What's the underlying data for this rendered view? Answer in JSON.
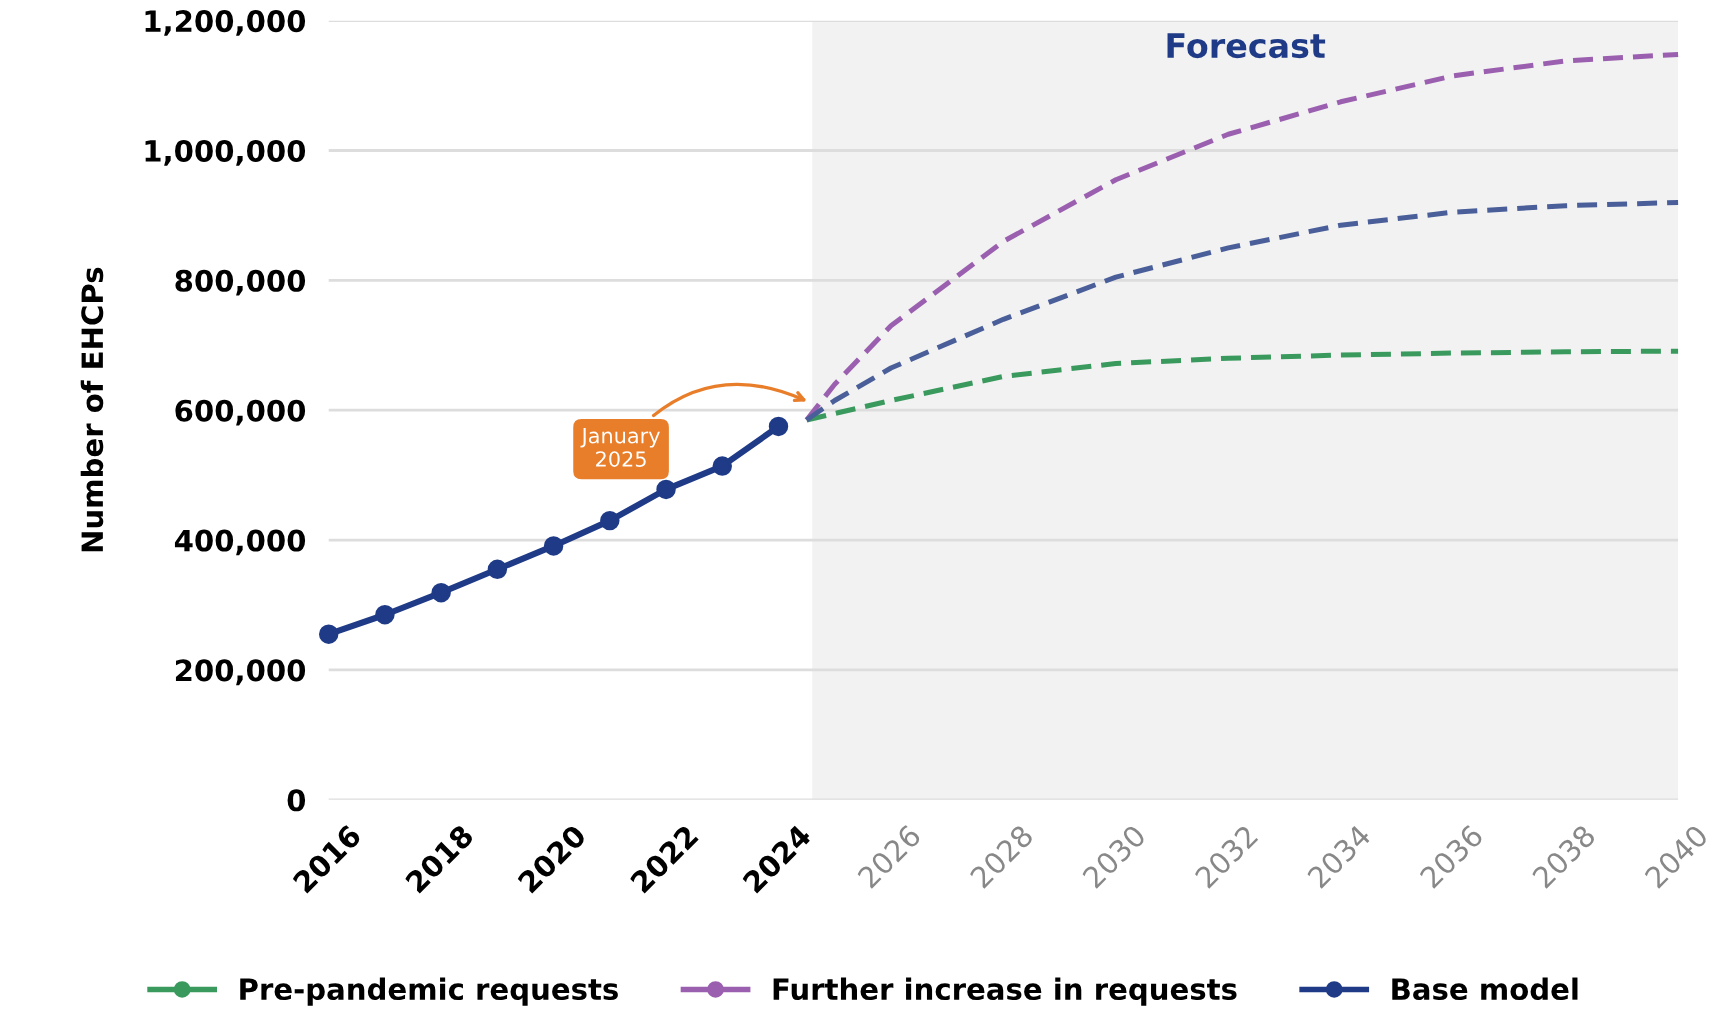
{
  "chart_data": {
    "type": "line",
    "ylabel": "Number of EHCPs",
    "xlim": [
      2016,
      2040
    ],
    "xticks": [
      2016,
      2018,
      2020,
      2022,
      2024,
      2026,
      2028,
      2030,
      2032,
      2034,
      2036,
      2038,
      2040
    ],
    "ylim": [
      0,
      1200000
    ],
    "yticks": [
      {
        "value": 0,
        "label": "0"
      },
      {
        "value": 200000,
        "label": "200,000"
      },
      {
        "value": 400000,
        "label": "400,000"
      },
      {
        "value": 600000,
        "label": "600,000"
      },
      {
        "value": 800000,
        "label": "800,000"
      },
      {
        "value": 1000000,
        "label": "1,000,000"
      },
      {
        "value": 1200000,
        "label": "1,200,000"
      }
    ],
    "grid": "y",
    "legend": "bottom",
    "marker": "circle",
    "bands": [
      {
        "axis": "x",
        "from": 2024.6,
        "to": 2040,
        "label": "Forecast",
        "color": "#f2f2f2"
      }
    ],
    "annotations": [
      {
        "text": "January 2025",
        "x": 2024.6,
        "y": 610000
      }
    ],
    "series": [
      {
        "name": "Pre-pandemic requests",
        "color": "#3a9a5e",
        "line_style": "dashed",
        "marker": "none",
        "x": [
          2024.5,
          2026,
          2028,
          2030,
          2032,
          2034,
          2036,
          2038,
          2040
        ],
        "values": [
          585000,
          615000,
          652000,
          672000,
          680000,
          685000,
          688000,
          690000,
          691000
        ]
      },
      {
        "name": "Further increase in requests",
        "color": "#9b5fb0",
        "line_style": "dashed",
        "marker": "none",
        "x": [
          2024.5,
          2025,
          2026,
          2028,
          2030,
          2032,
          2034,
          2036,
          2038,
          2040
        ],
        "values": [
          585000,
          640000,
          730000,
          860000,
          955000,
          1025000,
          1075000,
          1115000,
          1138000,
          1148000
        ]
      },
      {
        "color": "#4a5f9a",
        "line_style": "dashed",
        "marker": "none",
        "x": [
          2024.5,
          2025,
          2026,
          2028,
          2030,
          2032,
          2034,
          2036,
          2038,
          2040
        ],
        "values": [
          585000,
          615000,
          665000,
          740000,
          805000,
          850000,
          885000,
          905000,
          915000,
          920000
        ]
      },
      {
        "name": "Base model",
        "color": "#1f3b87",
        "line_style": "solid",
        "marker": "circle",
        "x": [
          2016,
          2017,
          2018,
          2019,
          2020,
          2021,
          2022,
          2023,
          2024
        ],
        "values": [
          255000,
          285000,
          319000,
          355000,
          391000,
          430000,
          478000,
          514000,
          575000
        ]
      }
    ]
  }
}
